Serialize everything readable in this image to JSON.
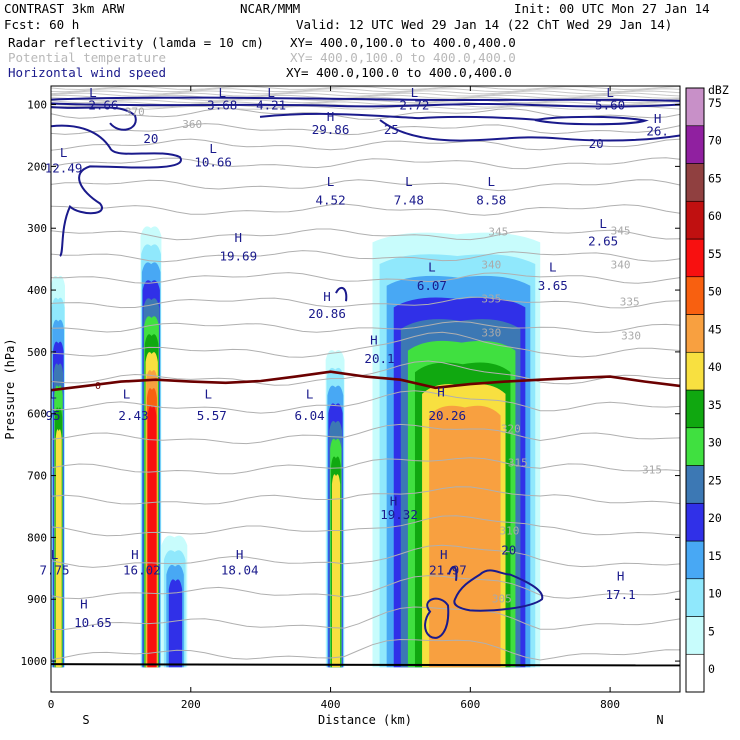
{
  "header": {
    "title_left": "CONTRAST  3km ARW",
    "title_center": "NCAR/MMM",
    "init": "Init: 00 UTC Mon 27 Jan 14",
    "fcst": "Fcst:    60 h",
    "valid": "Valid: 12 UTC Wed 29 Jan 14 (22 ChT Wed 29 Jan 14)",
    "field1_name": "Radar reflectivity (lamda = 10 cm)",
    "field1_xy": "XY= 400.0,100.0 to 400.0,400.0",
    "field2_name": "Potential temperature",
    "field2_xy": "XY= 400.0,100.0 to 400.0,400.0",
    "field3_name": "Horizontal wind speed",
    "field3_xy": "XY= 400.0,100.0 to 400.0,400.0"
  },
  "colors": {
    "wind": "#1a1a8c",
    "theta": "#b0b0b0",
    "freezing": "#6b0000"
  },
  "chart_data": {
    "type": "cross-section",
    "xlabel": "Distance (km)",
    "ylabel": "Pressure (hPa)",
    "xlim": [
      0,
      900
    ],
    "ylim": [
      1050,
      70
    ],
    "x_ticks": [
      "0",
      "200",
      "400",
      "600",
      "800"
    ],
    "x_tick_values": [
      0,
      200,
      400,
      600,
      800
    ],
    "y_ticks": [
      "100",
      "200",
      "300",
      "400",
      "500",
      "600",
      "700",
      "800",
      "900",
      "1000"
    ],
    "y_tick_values": [
      100,
      200,
      300,
      400,
      500,
      600,
      700,
      800,
      900,
      1000
    ],
    "end_labels": {
      "left": "S",
      "right": "N"
    },
    "colorbar": {
      "unit": "dBZ",
      "levels": [
        0,
        5,
        10,
        15,
        20,
        25,
        30,
        35,
        40,
        45,
        50,
        55,
        60,
        65,
        70,
        75
      ],
      "colors": [
        "#ffffff",
        "#c8fcfc",
        "#90e8fc",
        "#48a8f4",
        "#3030e8",
        "#3c78b4",
        "#40e040",
        "#10a810",
        "#f8e040",
        "#f8a040",
        "#f86010",
        "#f81010",
        "#c01010",
        "#904040",
        "#9020a0",
        "#c890c8"
      ]
    },
    "reflectivity_columns": [
      {
        "x0": 0,
        "x1": 20,
        "top": 380,
        "peak": 40
      },
      {
        "x0": 128,
        "x1": 158,
        "top": 300,
        "peak": 55
      },
      {
        "x0": 158,
        "x1": 195,
        "top": 800,
        "peak": 20
      },
      {
        "x0": 393,
        "x1": 420,
        "top": 500,
        "peak": 40
      },
      {
        "x0": 460,
        "x1": 700,
        "top": 310,
        "peak": 45
      }
    ],
    "wind_speed_labels": [
      {
        "text": "L",
        "x": 60,
        "p": 88
      },
      {
        "text": "2.66",
        "x": 75,
        "p": 108
      },
      {
        "text": "L",
        "x": 245,
        "p": 88
      },
      {
        "text": "3.68",
        "x": 245,
        "p": 108
      },
      {
        "text": "L",
        "x": 315,
        "p": 88
      },
      {
        "text": "4.21",
        "x": 315,
        "p": 108
      },
      {
        "text": "L",
        "x": 520,
        "p": 88
      },
      {
        "text": "2.72",
        "x": 520,
        "p": 108
      },
      {
        "text": "L",
        "x": 800,
        "p": 88
      },
      {
        "text": "5.60",
        "x": 800,
        "p": 108
      },
      {
        "text": "H",
        "x": 400,
        "p": 127
      },
      {
        "text": "29.86",
        "x": 400,
        "p": 148
      },
      {
        "text": "25",
        "x": 487,
        "p": 148
      },
      {
        "text": "20",
        "x": 143,
        "p": 162
      },
      {
        "text": "20",
        "x": 780,
        "p": 170
      },
      {
        "text": "H",
        "x": 868,
        "p": 130
      },
      {
        "text": "26.",
        "x": 868,
        "p": 150
      },
      {
        "text": "L",
        "x": 18,
        "p": 185
      },
      {
        "text": "12.49",
        "x": 18,
        "p": 210
      },
      {
        "text": "L",
        "x": 232,
        "p": 178
      },
      {
        "text": "10.66",
        "x": 232,
        "p": 200
      },
      {
        "text": "L",
        "x": 400,
        "p": 232
      },
      {
        "text": "4.52",
        "x": 400,
        "p": 262
      },
      {
        "text": "L",
        "x": 512,
        "p": 232
      },
      {
        "text": "7.48",
        "x": 512,
        "p": 262
      },
      {
        "text": "L",
        "x": 630,
        "p": 232
      },
      {
        "text": "8.58",
        "x": 630,
        "p": 262
      },
      {
        "text": "H",
        "x": 268,
        "p": 322
      },
      {
        "text": "19.69",
        "x": 268,
        "p": 352
      },
      {
        "text": "L",
        "x": 790,
        "p": 300
      },
      {
        "text": "2.65",
        "x": 790,
        "p": 328
      },
      {
        "text": "L",
        "x": 545,
        "p": 370
      },
      {
        "text": "6.07",
        "x": 545,
        "p": 400
      },
      {
        "text": "L",
        "x": 718,
        "p": 370
      },
      {
        "text": "3.65",
        "x": 718,
        "p": 400
      },
      {
        "text": "H",
        "x": 395,
        "p": 418
      },
      {
        "text": "20.86",
        "x": 395,
        "p": 445
      },
      {
        "text": "H",
        "x": 462,
        "p": 488
      },
      {
        "text": "20.1",
        "x": 470,
        "p": 518
      },
      {
        "text": "L",
        "x": 0,
        "p": 575
      },
      {
        "text": "95",
        "x": 0,
        "p": 610
      },
      {
        "text": "L",
        "x": 108,
        "p": 575
      },
      {
        "text": "2.43",
        "x": 118,
        "p": 610
      },
      {
        "text": "L",
        "x": 225,
        "p": 575
      },
      {
        "text": "5.57",
        "x": 230,
        "p": 610
      },
      {
        "text": "L",
        "x": 370,
        "p": 575
      },
      {
        "text": "6.04",
        "x": 370,
        "p": 610
      },
      {
        "text": "H",
        "x": 558,
        "p": 572
      },
      {
        "text": "20.26",
        "x": 567,
        "p": 610
      },
      {
        "text": "H",
        "x": 490,
        "p": 748
      },
      {
        "text": "19.32",
        "x": 498,
        "p": 770
      },
      {
        "text": "H",
        "x": 120,
        "p": 835
      },
      {
        "text": "16.02",
        "x": 130,
        "p": 860
      },
      {
        "text": "H",
        "x": 270,
        "p": 835
      },
      {
        "text": "18.04",
        "x": 270,
        "p": 860
      },
      {
        "text": "L",
        "x": 5,
        "p": 835
      },
      {
        "text": "7.75",
        "x": 5,
        "p": 860
      },
      {
        "text": "H",
        "x": 562,
        "p": 835
      },
      {
        "text": "21.97",
        "x": 568,
        "p": 860
      },
      {
        "text": "20",
        "x": 655,
        "p": 828
      },
      {
        "text": "H",
        "x": 815,
        "p": 870
      },
      {
        "text": "17.1",
        "x": 815,
        "p": 900
      },
      {
        "text": "H",
        "x": 47,
        "p": 915
      },
      {
        "text": "10.65",
        "x": 60,
        "p": 945
      }
    ],
    "theta_labels": [
      {
        "text": "370",
        "x": 120,
        "p": 118
      },
      {
        "text": "360",
        "x": 202,
        "p": 138
      },
      {
        "text": "345",
        "x": 815,
        "p": 310
      },
      {
        "text": "340",
        "x": 815,
        "p": 365
      },
      {
        "text": "335",
        "x": 828,
        "p": 425
      },
      {
        "text": "330",
        "x": 830,
        "p": 480
      },
      {
        "text": "320",
        "x": 658,
        "p": 630
      },
      {
        "text": "315",
        "x": 668,
        "p": 685
      },
      {
        "text": "315",
        "x": 860,
        "p": 697
      },
      {
        "text": "310",
        "x": 656,
        "p": 795
      },
      {
        "text": "305",
        "x": 645,
        "p": 905
      },
      {
        "text": "345",
        "x": 640,
        "p": 312
      },
      {
        "text": "340",
        "x": 630,
        "p": 365
      },
      {
        "text": "335",
        "x": 630,
        "p": 420
      },
      {
        "text": "330",
        "x": 630,
        "p": 475
      }
    ],
    "freezing_level": {
      "label": "0",
      "x": [
        0,
        50,
        100,
        150,
        200,
        250,
        300,
        350,
        400,
        450,
        500,
        550,
        600,
        650,
        700,
        750,
        800,
        850,
        900
      ],
      "p": [
        562,
        555,
        548,
        545,
        548,
        550,
        547,
        540,
        532,
        540,
        545,
        558,
        552,
        548,
        545,
        542,
        540,
        548,
        555
      ]
    }
  }
}
